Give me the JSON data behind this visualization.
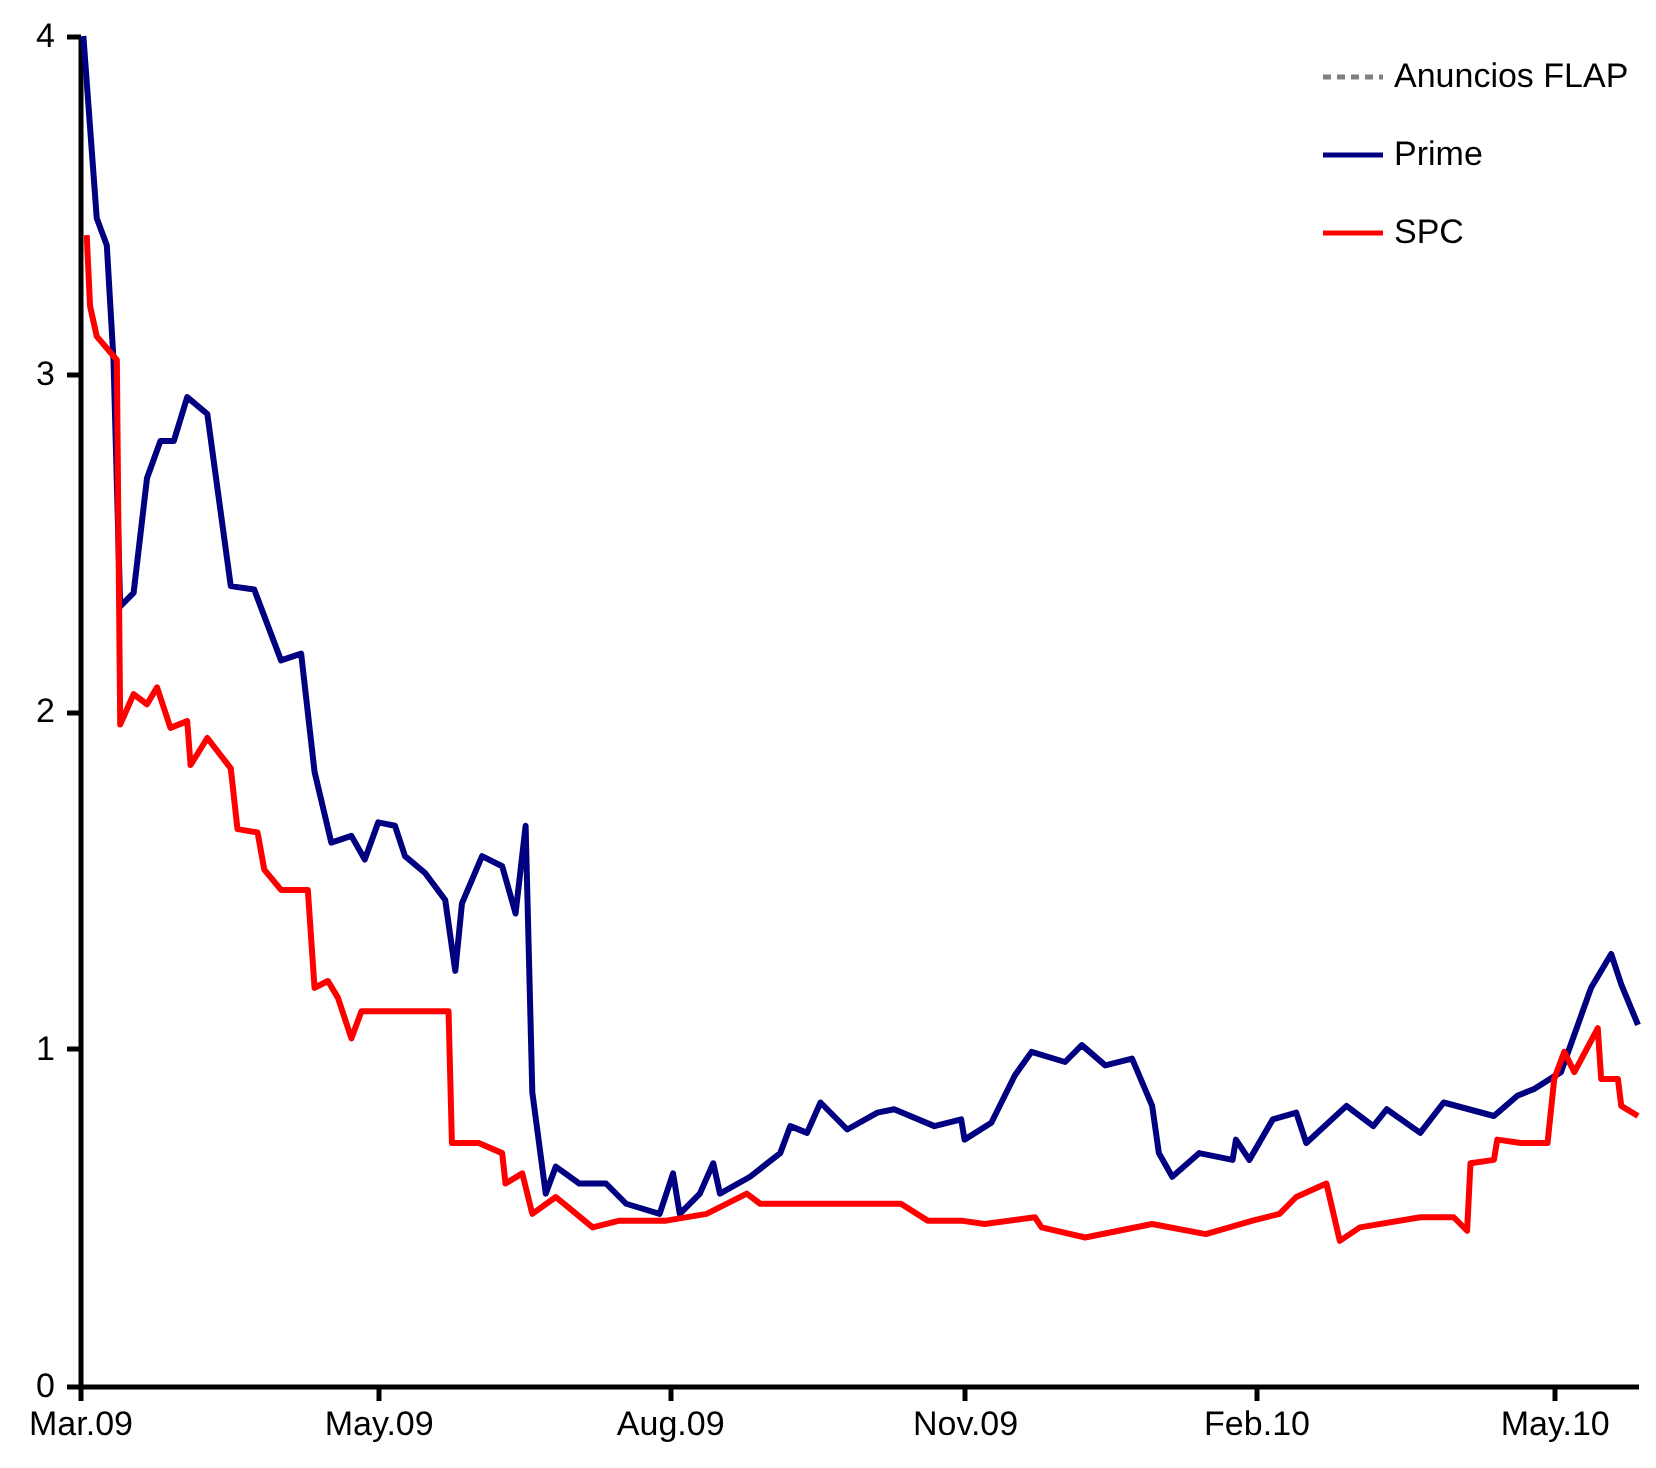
{
  "chart_data": {
    "type": "line",
    "xlim": [
      "2009-03-02",
      "2010-06-10"
    ],
    "ylim": [
      0,
      4
    ],
    "yticks": [
      0,
      1,
      2,
      3,
      4
    ],
    "xticks": [
      {
        "value": "2009-03-02",
        "label": "Mar.09"
      },
      {
        "value": "2009-05-30",
        "label": "May.09"
      },
      {
        "value": "2009-08-25",
        "label": "Aug.09"
      },
      {
        "value": "2009-11-21",
        "label": "Nov.09"
      },
      {
        "value": "2010-02-16",
        "label": "Feb.10"
      },
      {
        "value": "2010-05-16",
        "label": "May.10"
      }
    ],
    "grid": false,
    "legend": "top right",
    "marker": "none",
    "series": [
      {
        "name": "Anuncios FLAP",
        "color": "#808080",
        "line_style": "dashed"
      },
      {
        "name": "Prime",
        "color": "#000080",
        "line_style": "solid",
        "x": [
          "2009-03-03",
          "2009-03-07",
          "2009-03-10",
          "2009-03-12",
          "2009-03-14",
          "2009-03-18",
          "2009-03-22",
          "2009-03-26",
          "2009-03-30",
          "2009-04-03",
          "2009-04-09",
          "2009-04-16",
          "2009-04-23",
          "2009-05-01",
          "2009-05-07",
          "2009-05-11",
          "2009-05-16",
          "2009-05-22",
          "2009-05-26",
          "2009-05-30",
          "2009-06-04",
          "2009-06-07",
          "2009-06-13",
          "2009-06-19",
          "2009-06-22",
          "2009-06-24",
          "2009-06-30",
          "2009-07-06",
          "2009-07-10",
          "2009-07-13",
          "2009-07-15",
          "2009-07-19",
          "2009-07-22",
          "2009-07-29",
          "2009-08-06",
          "2009-08-12",
          "2009-08-22",
          "2009-08-26",
          "2009-08-28",
          "2009-09-03",
          "2009-09-07",
          "2009-09-09",
          "2009-09-18",
          "2009-09-27",
          "2009-09-30",
          "2009-10-05",
          "2009-10-09",
          "2009-10-17",
          "2009-10-26",
          "2009-10-31",
          "2009-11-12",
          "2009-11-20",
          "2009-11-21",
          "2009-11-29",
          "2009-12-06",
          "2009-12-11",
          "2009-12-21",
          "2009-12-26",
          "2010-01-02",
          "2010-01-10",
          "2010-01-16",
          "2010-01-18",
          "2010-01-22",
          "2010-01-30",
          "2010-02-09",
          "2010-02-10",
          "2010-02-14",
          "2010-02-21",
          "2010-02-28",
          "2010-03-03",
          "2010-03-15",
          "2010-03-23",
          "2010-03-27",
          "2010-04-06",
          "2010-04-13",
          "2010-04-28",
          "2010-05-05",
          "2010-05-10",
          "2010-05-18",
          "2010-05-27",
          "2010-06-02",
          "2010-06-05",
          "2010-06-10"
        ],
        "values": [
          4.0,
          3.46,
          3.38,
          3.04,
          2.31,
          2.35,
          2.69,
          2.8,
          2.8,
          2.93,
          2.88,
          2.37,
          2.36,
          2.15,
          2.17,
          1.82,
          1.61,
          1.63,
          1.56,
          1.67,
          1.66,
          1.57,
          1.52,
          1.44,
          1.23,
          1.43,
          1.57,
          1.54,
          1.4,
          1.66,
          0.87,
          0.57,
          0.65,
          0.6,
          0.6,
          0.54,
          0.51,
          0.63,
          0.51,
          0.57,
          0.66,
          0.57,
          0.62,
          0.69,
          0.77,
          0.75,
          0.84,
          0.76,
          0.81,
          0.82,
          0.77,
          0.79,
          0.73,
          0.78,
          0.92,
          0.99,
          0.96,
          1.01,
          0.95,
          0.97,
          0.83,
          0.69,
          0.62,
          0.69,
          0.67,
          0.73,
          0.67,
          0.79,
          0.81,
          0.72,
          0.83,
          0.77,
          0.82,
          0.75,
          0.84,
          0.8,
          0.86,
          0.88,
          0.93,
          1.18,
          1.28,
          1.19,
          1.07
        ]
      },
      {
        "name": "SPC",
        "color": "#ff0000",
        "line_style": "solid",
        "x": [
          "2009-03-04",
          "2009-03-05",
          "2009-03-07",
          "2009-03-13",
          "2009-03-14",
          "2009-03-18",
          "2009-03-22",
          "2009-03-25",
          "2009-03-29",
          "2009-04-03",
          "2009-04-04",
          "2009-04-09",
          "2009-04-16",
          "2009-04-18",
          "2009-04-24",
          "2009-04-26",
          "2009-05-01",
          "2009-05-09",
          "2009-05-11",
          "2009-05-15",
          "2009-05-18",
          "2009-05-22",
          "2009-05-25",
          "2009-06-20",
          "2009-06-21",
          "2009-06-29",
          "2009-07-06",
          "2009-07-07",
          "2009-07-12",
          "2009-07-15",
          "2009-07-22",
          "2009-08-02",
          "2009-08-10",
          "2009-08-24",
          "2009-09-05",
          "2009-09-17",
          "2009-09-21",
          "2009-10-01",
          "2009-10-19",
          "2009-11-02",
          "2009-11-10",
          "2009-11-20",
          "2009-11-27",
          "2009-12-12",
          "2009-12-14",
          "2009-12-27",
          "2010-01-16",
          "2010-02-01",
          "2010-02-15",
          "2010-02-23",
          "2010-02-28",
          "2010-03-09",
          "2010-03-13",
          "2010-03-19",
          "2010-04-06",
          "2010-04-16",
          "2010-04-20",
          "2010-04-21",
          "2010-04-28",
          "2010-04-29",
          "2010-05-06",
          "2010-05-14",
          "2010-05-16",
          "2010-05-19",
          "2010-05-22",
          "2010-05-29",
          "2010-05-30",
          "2010-06-04",
          "2010-06-05",
          "2010-06-10"
        ],
        "values": [
          3.41,
          3.2,
          3.11,
          3.04,
          1.96,
          2.05,
          2.02,
          2.07,
          1.95,
          1.97,
          1.84,
          1.92,
          1.83,
          1.65,
          1.64,
          1.53,
          1.47,
          1.47,
          1.18,
          1.2,
          1.15,
          1.03,
          1.11,
          1.11,
          0.72,
          0.72,
          0.69,
          0.6,
          0.63,
          0.51,
          0.56,
          0.47,
          0.49,
          0.49,
          0.51,
          0.57,
          0.54,
          0.54,
          0.54,
          0.54,
          0.49,
          0.49,
          0.48,
          0.5,
          0.47,
          0.44,
          0.48,
          0.45,
          0.49,
          0.51,
          0.56,
          0.6,
          0.43,
          0.47,
          0.5,
          0.5,
          0.46,
          0.66,
          0.67,
          0.73,
          0.72,
          0.72,
          0.91,
          0.99,
          0.93,
          1.06,
          0.91,
          0.91,
          0.83,
          0.8
        ]
      }
    ]
  }
}
